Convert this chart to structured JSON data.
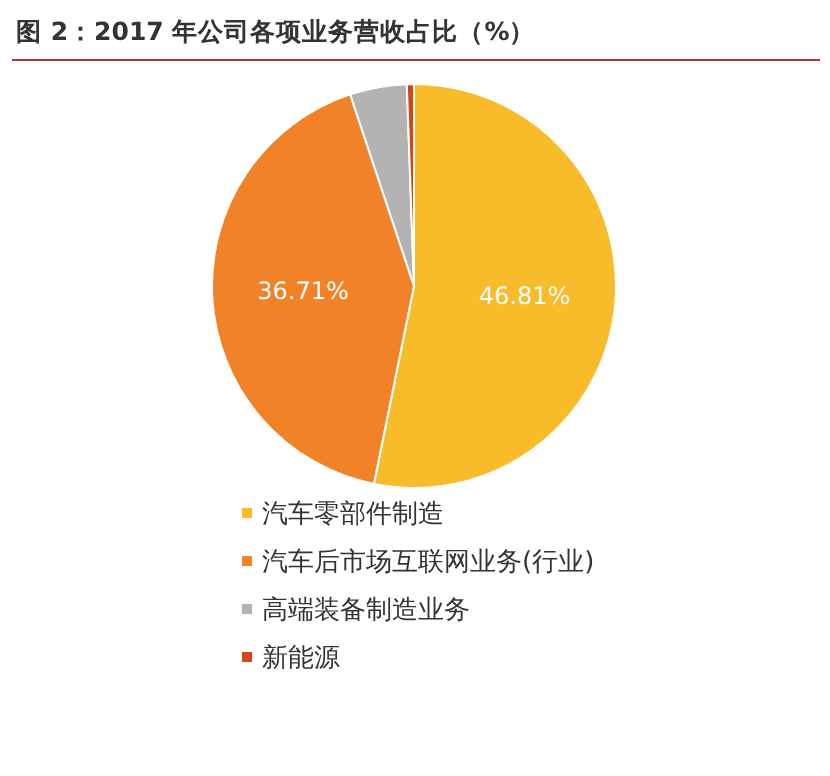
{
  "chart_data": {
    "type": "pie",
    "title": "图 2：2017 年公司各项业务营收占比（%）",
    "categories": [
      "汽车零部件制造",
      "汽车后市场互联网业务(行业)",
      "高端装备制造业务",
      "新能源"
    ],
    "values": [
      46.81,
      36.71,
      4,
      0.5
    ],
    "colors": [
      "#f8bb2a",
      "#f28228",
      "#b3b3b3",
      "#d6441b"
    ],
    "value_labels": [
      "46.81%",
      "36.71%",
      null,
      null
    ],
    "legend": "bottom"
  }
}
